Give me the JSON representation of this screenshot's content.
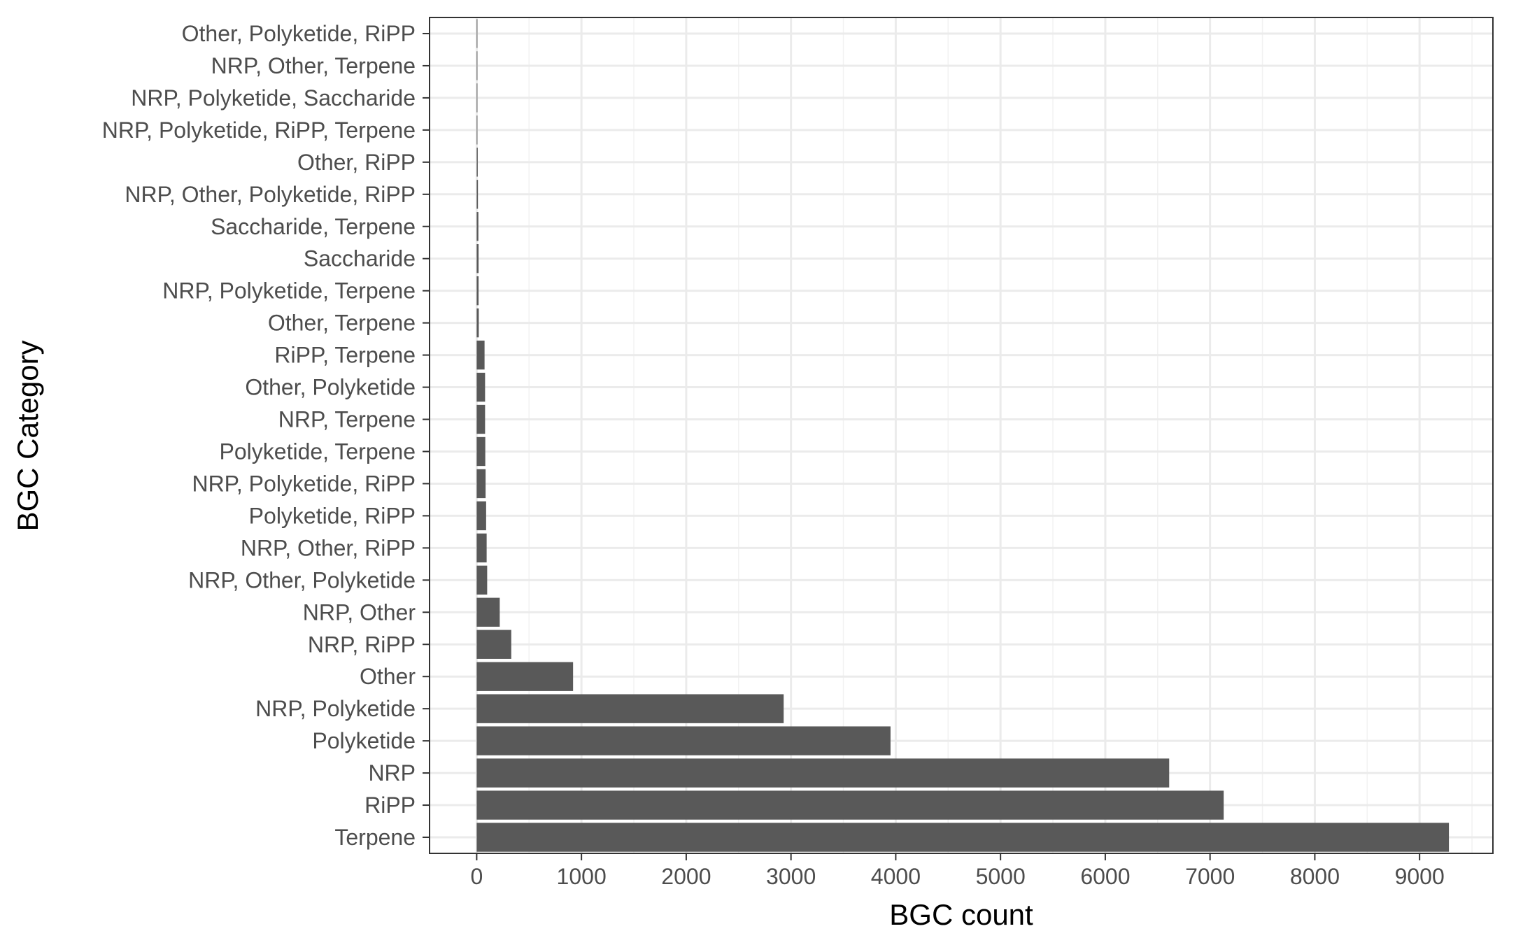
{
  "chart_data": {
    "type": "bar",
    "orientation": "horizontal",
    "xlabel": "BGC count",
    "ylabel": "BGC Category",
    "xlim": [
      -450,
      9700
    ],
    "xticks": [
      0,
      1000,
      2000,
      3000,
      4000,
      5000,
      6000,
      7000,
      8000,
      9000
    ],
    "xtick_labels": [
      "0",
      "1000",
      "2000",
      "3000",
      "4000",
      "5000",
      "6000",
      "7000",
      "8000",
      "9000"
    ],
    "grid": true,
    "bar_color": "#595959",
    "categories": [
      "Terpene",
      "RiPP",
      "NRP",
      "Polyketide",
      "NRP, Polyketide",
      "Other",
      "NRP, RiPP",
      "NRP, Other",
      "NRP, Other, Polyketide",
      "NRP, Other, RiPP",
      "Polyketide, RiPP",
      "NRP, Polyketide, RiPP",
      "Polyketide, Terpene",
      "NRP, Terpene",
      "Other, Polyketide",
      "RiPP, Terpene",
      "Other, Terpene",
      "NRP, Polyketide, Terpene",
      "Saccharide",
      "Saccharide, Terpene",
      "NRP, Other, Polyketide, RiPP",
      "Other, RiPP",
      "NRP, Polyketide, RiPP, Terpene",
      "NRP, Polyketide, Saccharide",
      "NRP, Other, Terpene",
      "Other, Polyketide, RiPP"
    ],
    "values": [
      9280,
      7130,
      6610,
      3950,
      2930,
      920,
      330,
      220,
      100,
      95,
      90,
      85,
      82,
      80,
      80,
      75,
      20,
      18,
      18,
      16,
      12,
      10,
      2,
      2,
      1,
      1
    ]
  }
}
